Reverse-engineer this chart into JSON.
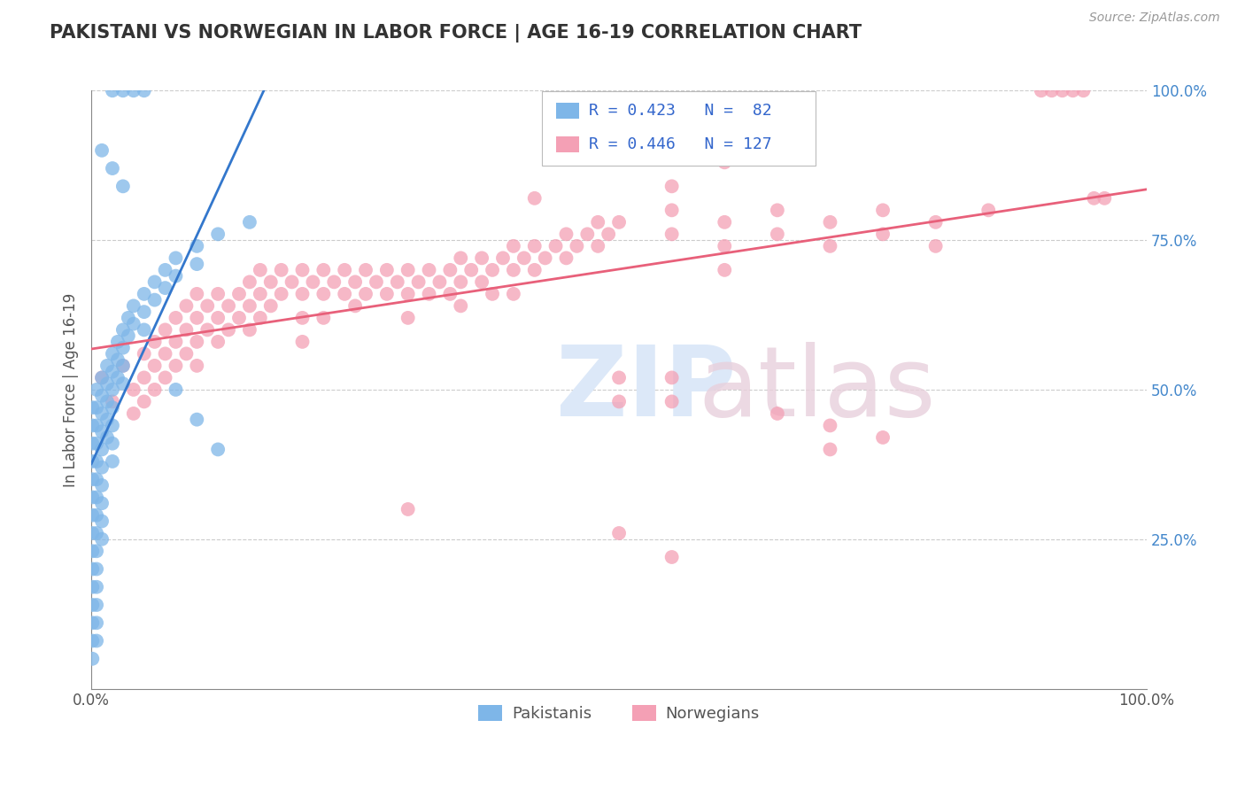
{
  "title": "PAKISTANI VS NORWEGIAN IN LABOR FORCE | AGE 16-19 CORRELATION CHART",
  "source": "Source: ZipAtlas.com",
  "ylabel": "In Labor Force | Age 16-19",
  "xlim": [
    0.0,
    1.0
  ],
  "ylim": [
    0.0,
    1.0
  ],
  "pakistani_color": "#7EB6E8",
  "norwegian_color": "#F4A0B5",
  "pakistani_line_color": "#3377CC",
  "norwegian_line_color": "#E8607A",
  "background_color": "#ffffff",
  "grid_color": "#cccccc",
  "title_color": "#333333",
  "legend_text_color": "#3366CC",
  "pakistani_points": [
    [
      0.001,
      0.47
    ],
    [
      0.001,
      0.44
    ],
    [
      0.001,
      0.41
    ],
    [
      0.001,
      0.38
    ],
    [
      0.001,
      0.35
    ],
    [
      0.001,
      0.32
    ],
    [
      0.001,
      0.29
    ],
    [
      0.001,
      0.26
    ],
    [
      0.001,
      0.23
    ],
    [
      0.001,
      0.2
    ],
    [
      0.001,
      0.17
    ],
    [
      0.001,
      0.14
    ],
    [
      0.001,
      0.11
    ],
    [
      0.001,
      0.08
    ],
    [
      0.001,
      0.05
    ],
    [
      0.005,
      0.5
    ],
    [
      0.005,
      0.47
    ],
    [
      0.005,
      0.44
    ],
    [
      0.005,
      0.41
    ],
    [
      0.005,
      0.38
    ],
    [
      0.005,
      0.35
    ],
    [
      0.005,
      0.32
    ],
    [
      0.005,
      0.29
    ],
    [
      0.005,
      0.26
    ],
    [
      0.005,
      0.23
    ],
    [
      0.005,
      0.2
    ],
    [
      0.005,
      0.17
    ],
    [
      0.005,
      0.14
    ],
    [
      0.005,
      0.11
    ],
    [
      0.005,
      0.08
    ],
    [
      0.01,
      0.52
    ],
    [
      0.01,
      0.49
    ],
    [
      0.01,
      0.46
    ],
    [
      0.01,
      0.43
    ],
    [
      0.01,
      0.4
    ],
    [
      0.01,
      0.37
    ],
    [
      0.01,
      0.34
    ],
    [
      0.01,
      0.31
    ],
    [
      0.01,
      0.28
    ],
    [
      0.01,
      0.25
    ],
    [
      0.015,
      0.54
    ],
    [
      0.015,
      0.51
    ],
    [
      0.015,
      0.48
    ],
    [
      0.015,
      0.45
    ],
    [
      0.015,
      0.42
    ],
    [
      0.02,
      0.56
    ],
    [
      0.02,
      0.53
    ],
    [
      0.02,
      0.5
    ],
    [
      0.02,
      0.47
    ],
    [
      0.02,
      0.44
    ],
    [
      0.02,
      0.41
    ],
    [
      0.02,
      0.38
    ],
    [
      0.025,
      0.58
    ],
    [
      0.025,
      0.55
    ],
    [
      0.025,
      0.52
    ],
    [
      0.03,
      0.6
    ],
    [
      0.03,
      0.57
    ],
    [
      0.03,
      0.54
    ],
    [
      0.03,
      0.51
    ],
    [
      0.035,
      0.62
    ],
    [
      0.035,
      0.59
    ],
    [
      0.04,
      0.64
    ],
    [
      0.04,
      0.61
    ],
    [
      0.05,
      0.66
    ],
    [
      0.05,
      0.63
    ],
    [
      0.05,
      0.6
    ],
    [
      0.06,
      0.68
    ],
    [
      0.06,
      0.65
    ],
    [
      0.07,
      0.7
    ],
    [
      0.07,
      0.67
    ],
    [
      0.08,
      0.72
    ],
    [
      0.08,
      0.69
    ],
    [
      0.1,
      0.74
    ],
    [
      0.1,
      0.71
    ],
    [
      0.12,
      0.76
    ],
    [
      0.15,
      0.78
    ],
    [
      0.02,
      1.0
    ],
    [
      0.03,
      1.0
    ],
    [
      0.04,
      1.0
    ],
    [
      0.05,
      1.0
    ],
    [
      0.01,
      0.9
    ],
    [
      0.02,
      0.87
    ],
    [
      0.03,
      0.84
    ],
    [
      0.08,
      0.5
    ],
    [
      0.1,
      0.45
    ],
    [
      0.12,
      0.4
    ]
  ],
  "norwegian_points": [
    [
      0.01,
      0.52
    ],
    [
      0.02,
      0.48
    ],
    [
      0.03,
      0.54
    ],
    [
      0.04,
      0.5
    ],
    [
      0.04,
      0.46
    ],
    [
      0.05,
      0.56
    ],
    [
      0.05,
      0.52
    ],
    [
      0.05,
      0.48
    ],
    [
      0.06,
      0.58
    ],
    [
      0.06,
      0.54
    ],
    [
      0.06,
      0.5
    ],
    [
      0.07,
      0.6
    ],
    [
      0.07,
      0.56
    ],
    [
      0.07,
      0.52
    ],
    [
      0.08,
      0.62
    ],
    [
      0.08,
      0.58
    ],
    [
      0.08,
      0.54
    ],
    [
      0.09,
      0.64
    ],
    [
      0.09,
      0.6
    ],
    [
      0.09,
      0.56
    ],
    [
      0.1,
      0.66
    ],
    [
      0.1,
      0.62
    ],
    [
      0.1,
      0.58
    ],
    [
      0.1,
      0.54
    ],
    [
      0.11,
      0.64
    ],
    [
      0.11,
      0.6
    ],
    [
      0.12,
      0.66
    ],
    [
      0.12,
      0.62
    ],
    [
      0.12,
      0.58
    ],
    [
      0.13,
      0.64
    ],
    [
      0.13,
      0.6
    ],
    [
      0.14,
      0.66
    ],
    [
      0.14,
      0.62
    ],
    [
      0.15,
      0.68
    ],
    [
      0.15,
      0.64
    ],
    [
      0.15,
      0.6
    ],
    [
      0.16,
      0.7
    ],
    [
      0.16,
      0.66
    ],
    [
      0.16,
      0.62
    ],
    [
      0.17,
      0.68
    ],
    [
      0.17,
      0.64
    ],
    [
      0.18,
      0.7
    ],
    [
      0.18,
      0.66
    ],
    [
      0.19,
      0.68
    ],
    [
      0.2,
      0.7
    ],
    [
      0.2,
      0.66
    ],
    [
      0.2,
      0.62
    ],
    [
      0.2,
      0.58
    ],
    [
      0.21,
      0.68
    ],
    [
      0.22,
      0.7
    ],
    [
      0.22,
      0.66
    ],
    [
      0.22,
      0.62
    ],
    [
      0.23,
      0.68
    ],
    [
      0.24,
      0.7
    ],
    [
      0.24,
      0.66
    ],
    [
      0.25,
      0.68
    ],
    [
      0.25,
      0.64
    ],
    [
      0.26,
      0.7
    ],
    [
      0.26,
      0.66
    ],
    [
      0.27,
      0.68
    ],
    [
      0.28,
      0.7
    ],
    [
      0.28,
      0.66
    ],
    [
      0.29,
      0.68
    ],
    [
      0.3,
      0.7
    ],
    [
      0.3,
      0.66
    ],
    [
      0.3,
      0.62
    ],
    [
      0.31,
      0.68
    ],
    [
      0.32,
      0.7
    ],
    [
      0.32,
      0.66
    ],
    [
      0.33,
      0.68
    ],
    [
      0.34,
      0.7
    ],
    [
      0.34,
      0.66
    ],
    [
      0.35,
      0.72
    ],
    [
      0.35,
      0.68
    ],
    [
      0.35,
      0.64
    ],
    [
      0.36,
      0.7
    ],
    [
      0.37,
      0.72
    ],
    [
      0.37,
      0.68
    ],
    [
      0.38,
      0.7
    ],
    [
      0.38,
      0.66
    ],
    [
      0.39,
      0.72
    ],
    [
      0.4,
      0.74
    ],
    [
      0.4,
      0.7
    ],
    [
      0.4,
      0.66
    ],
    [
      0.41,
      0.72
    ],
    [
      0.42,
      0.74
    ],
    [
      0.42,
      0.7
    ],
    [
      0.43,
      0.72
    ],
    [
      0.44,
      0.74
    ],
    [
      0.45,
      0.76
    ],
    [
      0.45,
      0.72
    ],
    [
      0.46,
      0.74
    ],
    [
      0.47,
      0.76
    ],
    [
      0.48,
      0.78
    ],
    [
      0.48,
      0.74
    ],
    [
      0.49,
      0.76
    ],
    [
      0.5,
      0.78
    ],
    [
      0.5,
      0.52
    ],
    [
      0.5,
      0.48
    ],
    [
      0.55,
      0.8
    ],
    [
      0.55,
      0.76
    ],
    [
      0.55,
      0.52
    ],
    [
      0.55,
      0.48
    ],
    [
      0.6,
      0.78
    ],
    [
      0.6,
      0.74
    ],
    [
      0.6,
      0.7
    ],
    [
      0.65,
      0.8
    ],
    [
      0.65,
      0.76
    ],
    [
      0.65,
      0.46
    ],
    [
      0.7,
      0.78
    ],
    [
      0.7,
      0.74
    ],
    [
      0.7,
      0.44
    ],
    [
      0.75,
      0.8
    ],
    [
      0.75,
      0.76
    ],
    [
      0.8,
      0.78
    ],
    [
      0.8,
      0.74
    ],
    [
      0.85,
      0.8
    ],
    [
      0.9,
      1.0
    ],
    [
      0.91,
      1.0
    ],
    [
      0.92,
      1.0
    ],
    [
      0.93,
      1.0
    ],
    [
      0.94,
      1.0
    ],
    [
      0.95,
      0.82
    ],
    [
      0.96,
      0.82
    ],
    [
      0.42,
      0.82
    ],
    [
      0.55,
      0.84
    ],
    [
      0.6,
      0.88
    ],
    [
      0.3,
      0.3
    ],
    [
      0.5,
      0.26
    ],
    [
      0.55,
      0.22
    ],
    [
      0.7,
      0.4
    ],
    [
      0.75,
      0.42
    ]
  ]
}
